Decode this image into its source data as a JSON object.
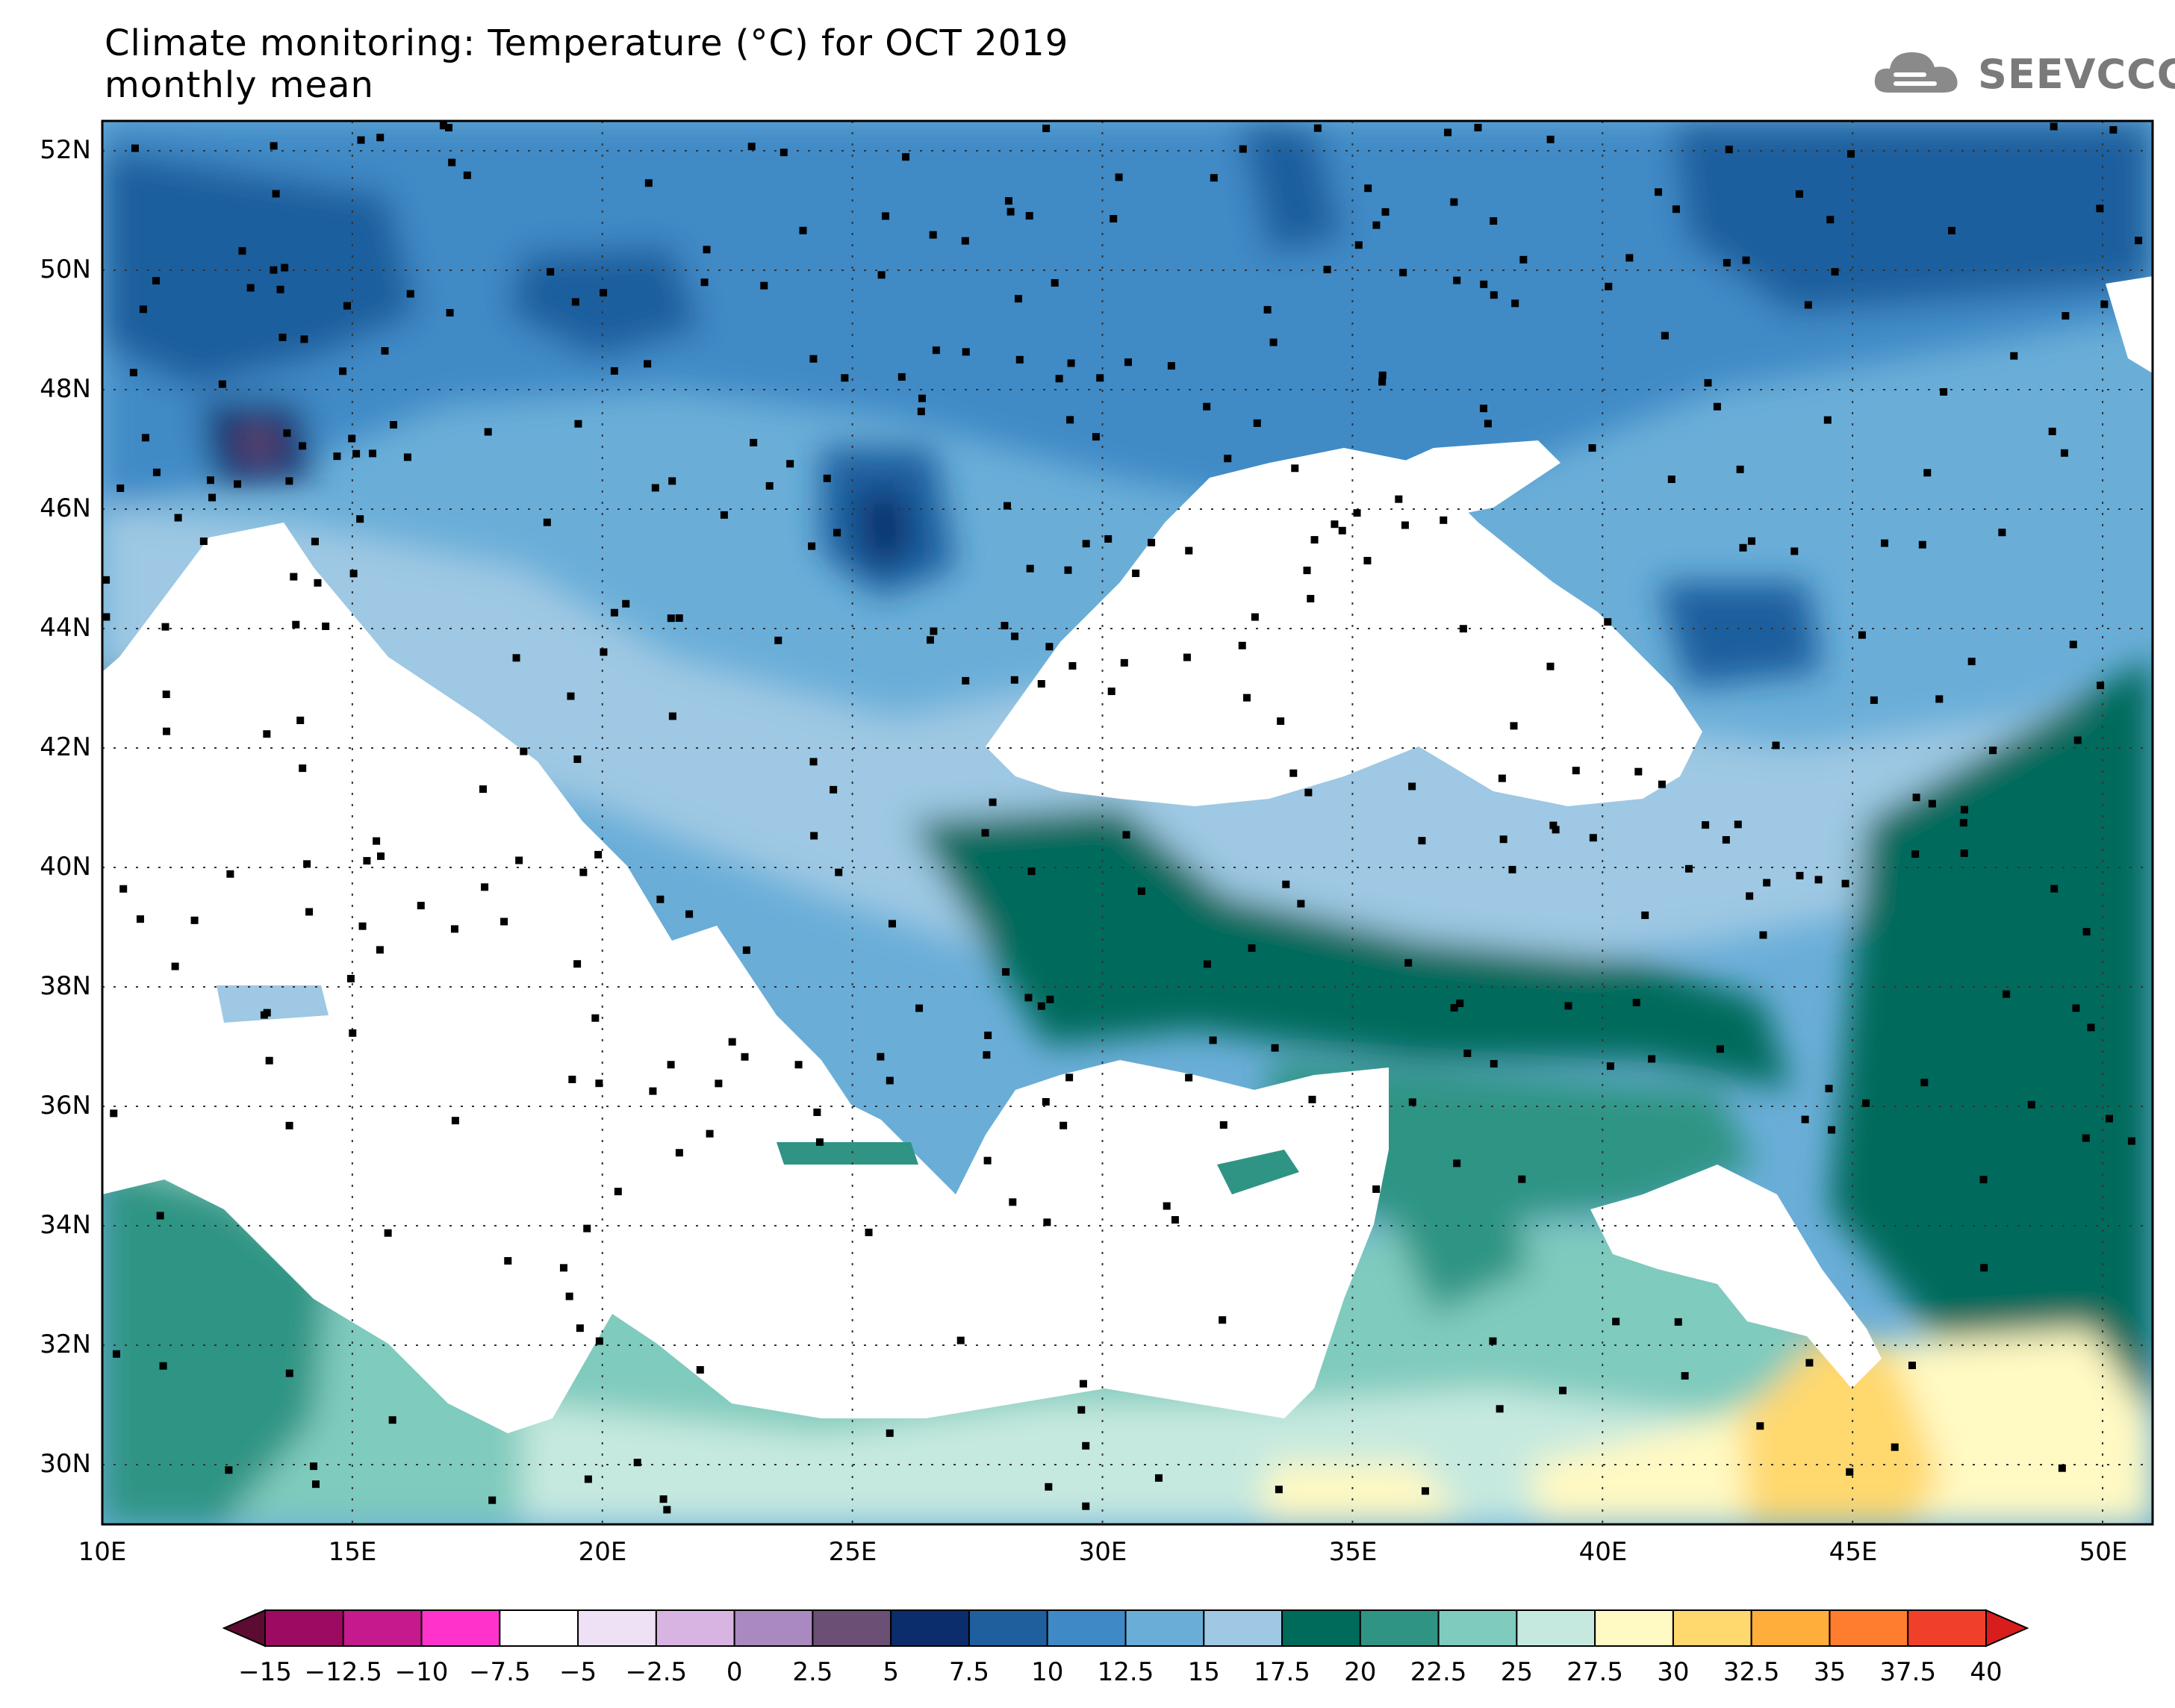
{
  "title": {
    "line1": "Climate monitoring: Temperature (°C) for OCT 2019",
    "line2": "monthly mean"
  },
  "logo": {
    "text": "SEEVCCC",
    "icon": "cloud-icon"
  },
  "map": {
    "lon_ticks": [
      {
        "value": 10,
        "label": "10E"
      },
      {
        "value": 15,
        "label": "15E"
      },
      {
        "value": 20,
        "label": "20E"
      },
      {
        "value": 25,
        "label": "25E"
      },
      {
        "value": 30,
        "label": "30E"
      },
      {
        "value": 35,
        "label": "35E"
      },
      {
        "value": 40,
        "label": "40E"
      },
      {
        "value": 45,
        "label": "45E"
      },
      {
        "value": 50,
        "label": "50E"
      }
    ],
    "lat_ticks": [
      {
        "value": 52,
        "label": "52N"
      },
      {
        "value": 50,
        "label": "50N"
      },
      {
        "value": 48,
        "label": "48N"
      },
      {
        "value": 46,
        "label": "46N"
      },
      {
        "value": 44,
        "label": "44N"
      },
      {
        "value": 42,
        "label": "42N"
      },
      {
        "value": 40,
        "label": "40N"
      },
      {
        "value": 38,
        "label": "38N"
      },
      {
        "value": 36,
        "label": "36N"
      },
      {
        "value": 34,
        "label": "34N"
      },
      {
        "value": 32,
        "label": "32N"
      },
      {
        "value": 30,
        "label": "30N"
      }
    ],
    "lon_range": [
      10,
      51
    ],
    "lat_range": [
      29,
      52.5
    ],
    "grid": "dotted"
  },
  "colorbar": {
    "labels": [
      "−15",
      "−12.5",
      "−10",
      "−7.5",
      "−5",
      "−2.5",
      "0",
      "2.5",
      "5",
      "7.5",
      "10",
      "12.5",
      "15",
      "17.5",
      "20",
      "22.5",
      "25",
      "27.5",
      "30",
      "32.5",
      "35",
      "37.5",
      "40"
    ],
    "colors": [
      "#5c0b31",
      "#9c0a62",
      "#c41a8d",
      "#ff33cc",
      "#ffffff",
      "#eee1f5",
      "#d8b4e2",
      "#a989c0",
      "#6b4f74",
      "#0b2d6b",
      "#1f5f9e",
      "#3f8ac6",
      "#6aaed8",
      "#9ec8e3",
      "#006b5b",
      "#2f9484",
      "#7fcbbd",
      "#c6e9df",
      "#fff9c3",
      "#ffd86e",
      "#ffad3b",
      "#ff7d2e",
      "#f0402a",
      "#d81d1d"
    ]
  }
}
